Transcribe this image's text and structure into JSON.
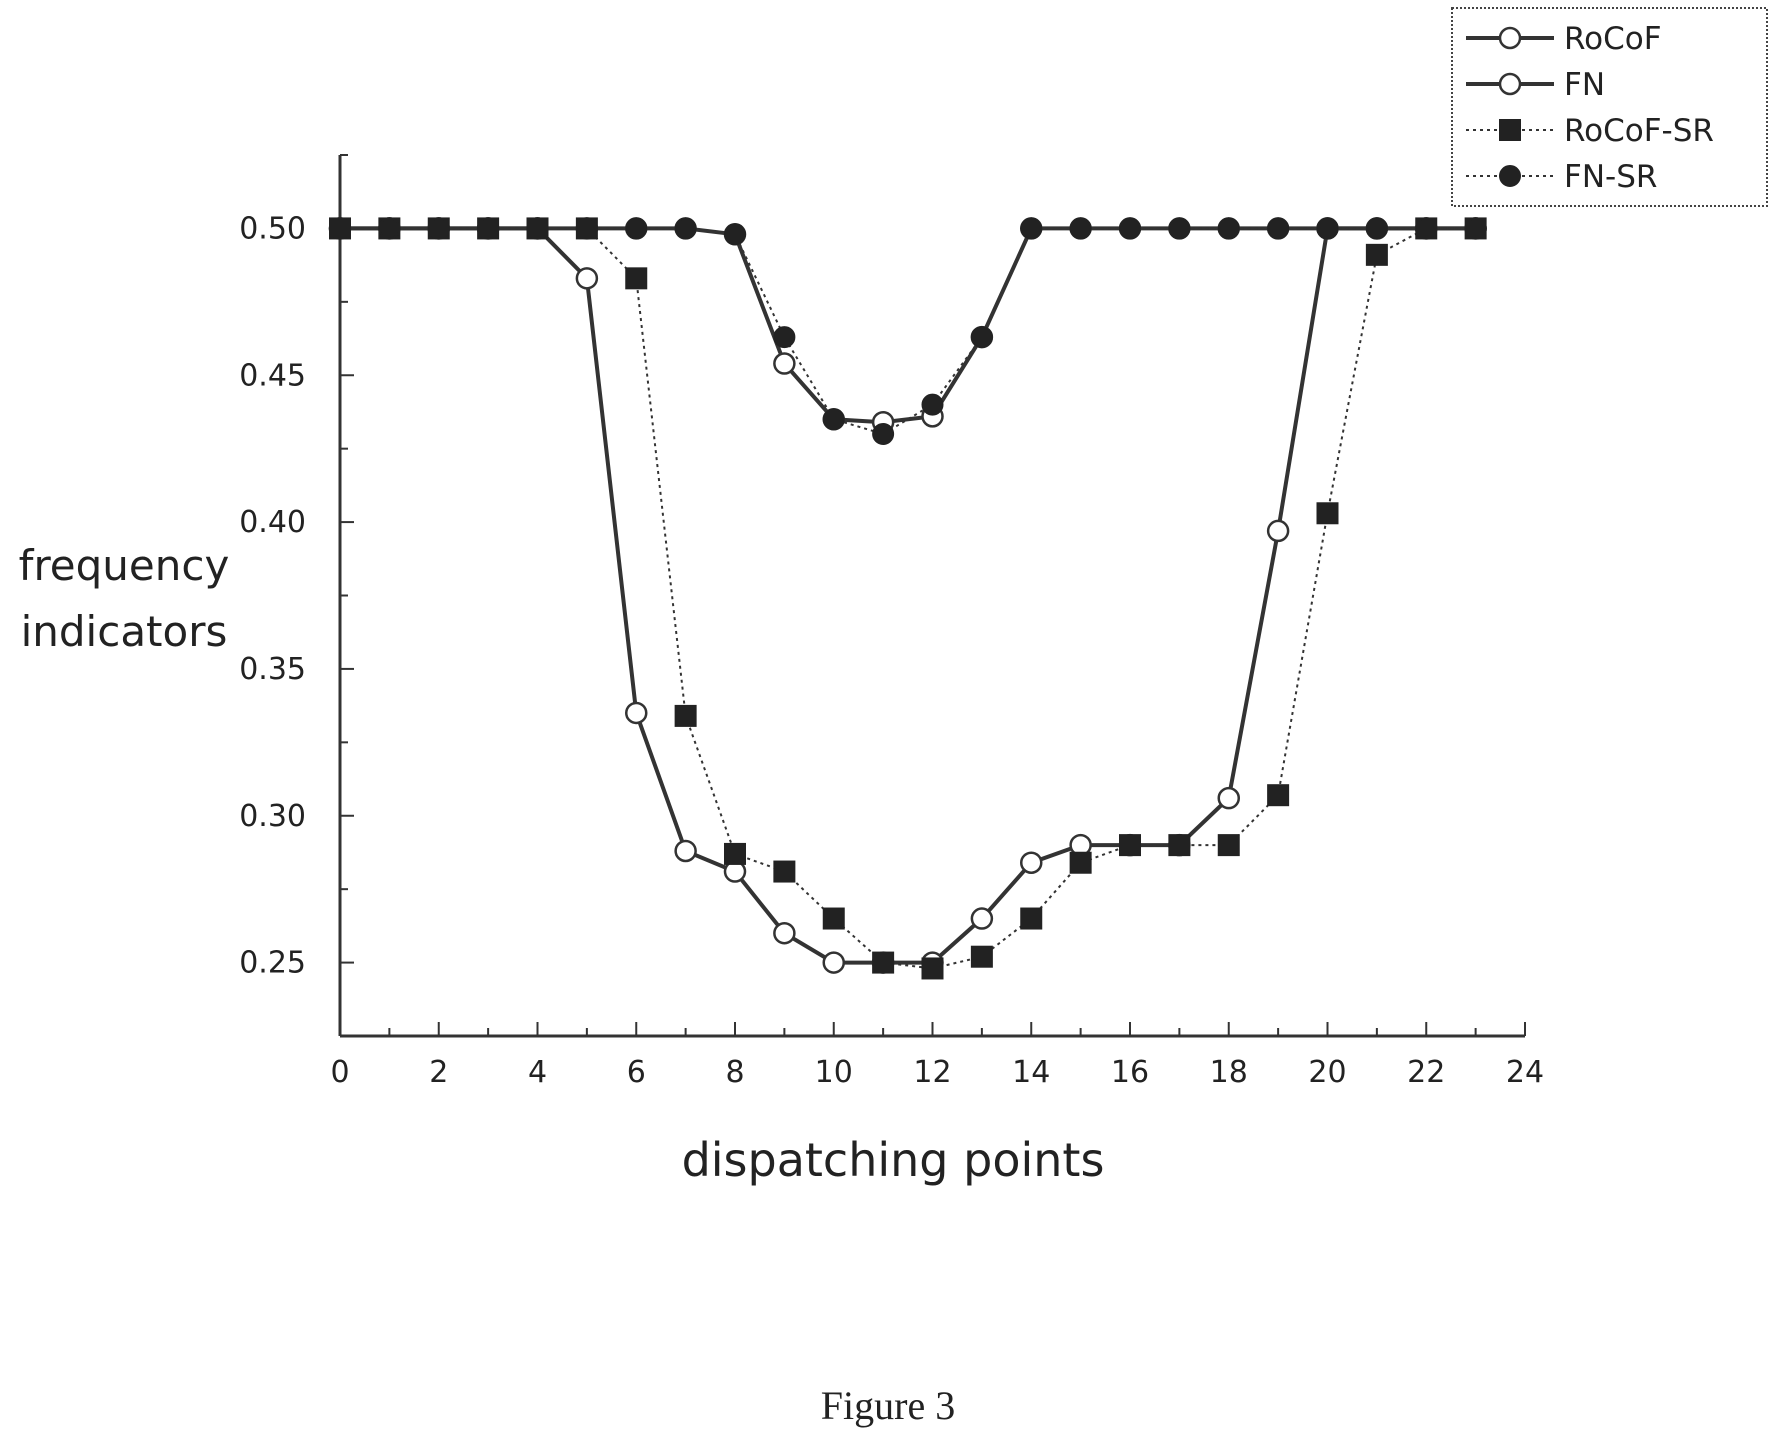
{
  "caption": "Figure 3",
  "chart_data": {
    "type": "line",
    "title": "",
    "xlabel": "dispatching points",
    "ylabel_lines": [
      "frequency",
      "indicators"
    ],
    "xlim": [
      0,
      24
    ],
    "ylim": [
      0.225,
      0.525
    ],
    "x_ticks": [
      0,
      2,
      4,
      6,
      8,
      10,
      12,
      14,
      16,
      18,
      20,
      22,
      24
    ],
    "y_ticks": [
      0.25,
      0.3,
      0.35,
      0.4,
      0.45,
      0.5
    ],
    "y_tick_labels": [
      "0.25",
      "0.30",
      "0.35",
      "0.40",
      "0.45",
      "0.50"
    ],
    "grid": false,
    "legend_position": "top-right",
    "x": [
      0,
      1,
      2,
      3,
      4,
      5,
      6,
      7,
      8,
      9,
      10,
      11,
      12,
      13,
      14,
      15,
      16,
      17,
      18,
      19,
      20,
      21,
      22,
      23
    ],
    "series": [
      {
        "name": "RoCoF",
        "marker": "open-circle",
        "line": "solid",
        "color": "#333333",
        "values": [
          0.5,
          0.5,
          0.5,
          0.5,
          0.5,
          0.483,
          0.335,
          0.288,
          0.281,
          0.26,
          0.25,
          0.25,
          0.25,
          0.265,
          0.284,
          0.29,
          0.29,
          0.29,
          0.306,
          0.397,
          0.5,
          0.5,
          0.5,
          0.5
        ]
      },
      {
        "name": "FN",
        "marker": "open-circle",
        "line": "solid",
        "color": "#333333",
        "values": [
          0.5,
          0.5,
          0.5,
          0.5,
          0.5,
          0.5,
          0.5,
          0.5,
          0.498,
          0.454,
          0.435,
          0.434,
          0.436,
          0.463,
          0.5,
          0.5,
          0.5,
          0.5,
          0.5,
          0.5,
          0.5,
          0.5,
          0.5,
          0.5
        ]
      },
      {
        "name": "RoCoF-SR",
        "marker": "filled-square",
        "line": "dotted",
        "color": "#333333",
        "values": [
          0.5,
          0.5,
          0.5,
          0.5,
          0.5,
          0.5,
          0.483,
          0.334,
          0.287,
          0.281,
          0.265,
          0.25,
          0.248,
          0.252,
          0.265,
          0.284,
          0.29,
          0.29,
          0.29,
          0.307,
          0.403,
          0.491,
          0.5,
          0.5
        ]
      },
      {
        "name": "FN-SR",
        "marker": "filled-circle",
        "line": "dotted",
        "color": "#333333",
        "values": [
          0.5,
          0.5,
          0.5,
          0.5,
          0.5,
          0.5,
          0.5,
          0.5,
          0.498,
          0.463,
          0.435,
          0.43,
          0.44,
          0.463,
          0.5,
          0.5,
          0.5,
          0.5,
          0.5,
          0.5,
          0.5,
          0.5,
          0.5,
          0.5
        ]
      }
    ]
  }
}
